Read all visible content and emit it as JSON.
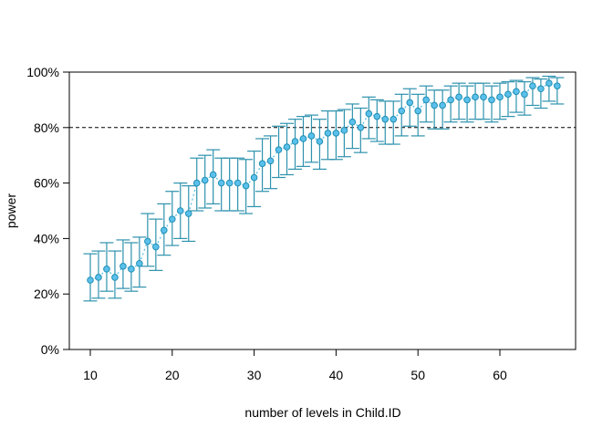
{
  "chart_data": {
    "type": "scatter",
    "title": "",
    "xlabel": "number of levels in Child.ID",
    "ylabel": "power",
    "xlim": [
      8,
      69
    ],
    "ylim": [
      0,
      100
    ],
    "x_ticks": [
      10,
      20,
      30,
      40,
      50,
      60
    ],
    "y_ticks": [
      0,
      20,
      40,
      60,
      80,
      100
    ],
    "y_tick_labels": [
      "0%",
      "20%",
      "40%",
      "60%",
      "80%",
      "100%"
    ],
    "reference_line": {
      "y": 80,
      "style": "dashed",
      "color": "#000000"
    },
    "grid": false,
    "legend": "none",
    "colors": {
      "point_fill": "#5bc0eb",
      "point_stroke": "#1f8fb3",
      "errorbar": "#2e92ad",
      "line": "#5bc0eb"
    },
    "x": [
      10,
      11,
      12,
      13,
      14,
      15,
      16,
      17,
      18,
      19,
      20,
      21,
      22,
      23,
      24,
      25,
      26,
      27,
      28,
      29,
      30,
      31,
      32,
      33,
      34,
      35,
      36,
      37,
      38,
      39,
      40,
      41,
      42,
      43,
      44,
      45,
      46,
      47,
      48,
      49,
      50,
      51,
      52,
      53,
      54,
      55,
      56,
      57,
      58,
      59,
      60,
      61,
      62,
      63,
      64,
      65,
      66,
      67
    ],
    "y": [
      25,
      26,
      29,
      26,
      30,
      29,
      31,
      39,
      37,
      43,
      47,
      50,
      49,
      60,
      61,
      63,
      60,
      60,
      60,
      59,
      62,
      67,
      68,
      72,
      73,
      75,
      76,
      77,
      75,
      78,
      78,
      79,
      82,
      80,
      85,
      84,
      83,
      83,
      86,
      89,
      86,
      90,
      88,
      88,
      90,
      91,
      90,
      91,
      91,
      90,
      91,
      92,
      93,
      92,
      95,
      94,
      96,
      95
    ],
    "ci_low": [
      17.5,
      18.5,
      21,
      18.5,
      22,
      21,
      22.5,
      30,
      28.5,
      34,
      37.5,
      40,
      39,
      50,
      51,
      52.5,
      50,
      50,
      50,
      49,
      51.5,
      57,
      58,
      62,
      63,
      65,
      66,
      67.5,
      65,
      68.5,
      68.5,
      69.5,
      72.5,
      71,
      76,
      75,
      74,
      74,
      77,
      80.5,
      77,
      82,
      79.5,
      79.5,
      82,
      83,
      82,
      83,
      83,
      82,
      83,
      84,
      85.5,
      84.5,
      88,
      87,
      89.5,
      88.5
    ],
    "ci_high": [
      34.5,
      35.5,
      38.5,
      35.5,
      39.5,
      38.5,
      40.5,
      49,
      47,
      52.5,
      57,
      60,
      59,
      69,
      70,
      72,
      69,
      69,
      69,
      68.5,
      71.5,
      76,
      77,
      80.5,
      81.5,
      83,
      84,
      84.5,
      83,
      86,
      86,
      86.5,
      88.5,
      87,
      91,
      90,
      89.5,
      89.5,
      92,
      94,
      92,
      95,
      93.5,
      93.5,
      95,
      96,
      95,
      96,
      96,
      95,
      96,
      96.5,
      97,
      96.5,
      98,
      97.5,
      98.5,
      98
    ]
  }
}
